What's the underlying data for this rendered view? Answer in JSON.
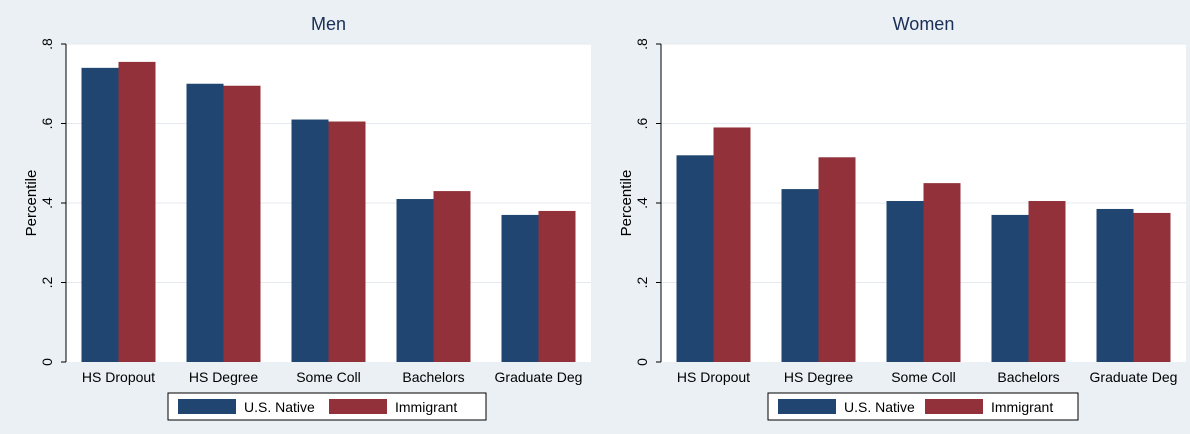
{
  "chart_data": [
    {
      "type": "bar",
      "title": "Men",
      "xlabel": "",
      "ylabel": "Percentile",
      "ylim": [
        0,
        0.8
      ],
      "yticks": [
        "0",
        ".2",
        ".4",
        ".6",
        ".8"
      ],
      "grid": true,
      "legend_position": "bottom",
      "categories": [
        "HS Dropout",
        "HS Degree",
        "Some Coll",
        "Bachelors",
        "Graduate Deg"
      ],
      "series": [
        {
          "name": "U.S. Native",
          "color": "#1f4570",
          "values": [
            0.74,
            0.7,
            0.61,
            0.41,
            0.37
          ]
        },
        {
          "name": "Immigrant",
          "color": "#923139",
          "values": [
            0.755,
            0.695,
            0.605,
            0.43,
            0.38
          ]
        }
      ]
    },
    {
      "type": "bar",
      "title": "Women",
      "xlabel": "",
      "ylabel": "Percentile",
      "ylim": [
        0,
        0.8
      ],
      "yticks": [
        "0",
        ".2",
        ".4",
        ".6",
        ".8"
      ],
      "grid": true,
      "legend_position": "bottom",
      "categories": [
        "HS Dropout",
        "HS Degree",
        "Some Coll",
        "Bachelors",
        "Graduate Deg"
      ],
      "series": [
        {
          "name": "U.S. Native",
          "color": "#1f4570",
          "values": [
            0.52,
            0.435,
            0.405,
            0.37,
            0.385
          ]
        },
        {
          "name": "Immigrant",
          "color": "#923139",
          "values": [
            0.59,
            0.515,
            0.45,
            0.405,
            0.375
          ]
        }
      ]
    }
  ],
  "colors": {
    "panel_background": "#eaf0f3",
    "plot_background": "#ffffff",
    "gridline": "#e4eaef",
    "title_text": "#1a2e57"
  }
}
